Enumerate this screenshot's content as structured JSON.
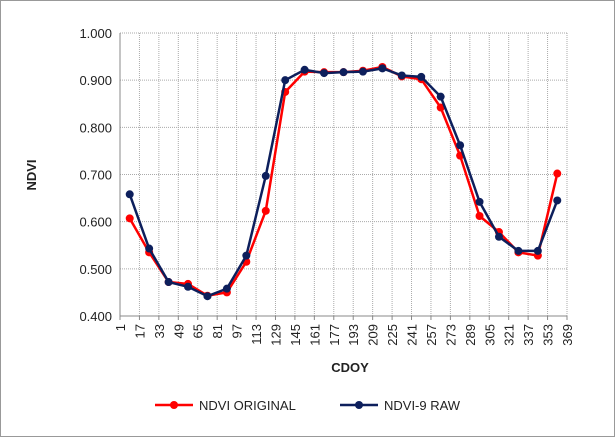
{
  "chart_data": {
    "type": "line",
    "x_label": "CDOY",
    "y_label": "NDVI",
    "x": [
      9,
      25,
      41,
      57,
      73,
      89,
      105,
      121,
      137,
      153,
      169,
      185,
      201,
      217,
      233,
      249,
      265,
      281,
      297,
      313,
      329,
      345,
      361
    ],
    "series": [
      {
        "name": "NDVI ORIGINAL",
        "color": "#ff0000",
        "values": [
          0.607,
          0.535,
          0.472,
          0.468,
          0.443,
          0.45,
          0.515,
          0.623,
          0.875,
          0.918,
          0.917,
          0.917,
          0.92,
          0.928,
          0.908,
          0.902,
          0.842,
          0.74,
          0.612,
          0.578,
          0.535,
          0.528,
          0.702
        ]
      },
      {
        "name": "NDVI-9 RAW",
        "color": "#0d1f5c",
        "values": [
          0.658,
          0.543,
          0.472,
          0.462,
          0.442,
          0.458,
          0.528,
          0.697,
          0.9,
          0.922,
          0.915,
          0.917,
          0.918,
          0.925,
          0.91,
          0.907,
          0.865,
          0.762,
          0.642,
          0.568,
          0.538,
          0.538,
          0.645
        ]
      }
    ],
    "xlim": [
      1,
      369
    ],
    "xticks": [
      1,
      17,
      33,
      49,
      65,
      81,
      97,
      113,
      129,
      145,
      161,
      177,
      193,
      209,
      225,
      241,
      257,
      273,
      289,
      305,
      321,
      337,
      353,
      369
    ],
    "ylim": [
      0.4,
      1.0
    ],
    "yticks": [
      {
        "value": 0.4,
        "label": "0.400"
      },
      {
        "value": 0.5,
        "label": "0.500"
      },
      {
        "value": 0.6,
        "label": "0.600"
      },
      {
        "value": 0.7,
        "label": "0.700"
      },
      {
        "value": 0.8,
        "label": "0.800"
      },
      {
        "value": 0.9,
        "label": "0.900"
      },
      {
        "value": 1.0,
        "label": "1.000"
      }
    ],
    "grid": true,
    "legend": "bottom"
  }
}
